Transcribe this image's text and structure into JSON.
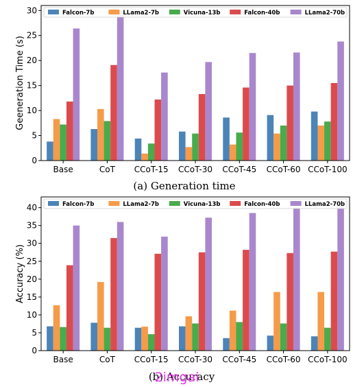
{
  "chart_data": [
    {
      "type": "bar",
      "caption": "(a) Generation time",
      "xlabel": "",
      "ylabel": "Geeneration Time (s)",
      "categories": [
        "Base",
        "CoT",
        "CCoT-15",
        "CCoT-30",
        "CCoT-45",
        "CCoT-60",
        "CCoT-100"
      ],
      "ylim": [
        0,
        31
      ],
      "yticks": [
        0,
        5,
        10,
        15,
        20,
        25,
        30
      ],
      "grid": false,
      "legend_position": "top",
      "series": [
        {
          "name": "Falcon-7b",
          "color": "#4c84b8",
          "values": [
            3.8,
            6.3,
            4.4,
            5.8,
            8.6,
            9.1,
            9.8
          ]
        },
        {
          "name": "LLama2-7b",
          "color": "#f59b49",
          "values": [
            8.3,
            10.3,
            1.4,
            2.7,
            3.2,
            5.4,
            7.0
          ]
        },
        {
          "name": "Vicuna-13b",
          "color": "#4aab4d",
          "values": [
            7.2,
            7.9,
            3.4,
            5.4,
            5.6,
            7.0,
            7.8
          ]
        },
        {
          "name": "Falcon-40b",
          "color": "#dc4b4c",
          "values": [
            11.8,
            19.1,
            12.2,
            13.3,
            14.6,
            15.0,
            15.5
          ]
        },
        {
          "name": "LLama2-70b",
          "color": "#a987cc",
          "values": [
            26.4,
            29.9,
            17.6,
            19.7,
            21.5,
            21.6,
            23.8
          ]
        }
      ]
    },
    {
      "type": "bar",
      "caption": "(b) Accuracy",
      "xlabel": "",
      "ylabel": "Accuracy (%)",
      "categories": [
        "Base",
        "CoT",
        "CCoT-15",
        "CCoT-30",
        "CCoT-45",
        "CCoT-60",
        "CCoT-100"
      ],
      "ylim": [
        0,
        43
      ],
      "yticks": [
        0,
        5,
        10,
        15,
        20,
        25,
        30,
        35,
        40
      ],
      "grid": false,
      "legend_position": "top",
      "series": [
        {
          "name": "Falcon-7b",
          "color": "#4c84b8",
          "values": [
            6.8,
            7.8,
            6.4,
            6.8,
            3.5,
            4.2,
            4.0
          ]
        },
        {
          "name": "LLama2-7b",
          "color": "#f59b49",
          "values": [
            12.7,
            19.2,
            6.7,
            9.6,
            11.2,
            16.4,
            16.4
          ]
        },
        {
          "name": "Vicuna-13b",
          "color": "#4aab4d",
          "values": [
            6.6,
            6.4,
            4.6,
            7.6,
            8.0,
            7.6,
            6.4
          ]
        },
        {
          "name": "Falcon-40b",
          "color": "#dc4b4c",
          "values": [
            23.9,
            31.5,
            27.1,
            27.5,
            28.2,
            27.3,
            27.7
          ]
        },
        {
          "name": "LLama2-70b",
          "color": "#a987cc",
          "values": [
            35.0,
            36.0,
            31.9,
            37.2,
            38.5,
            40.0,
            40.8
          ]
        }
      ]
    }
  ],
  "watermark": "2imgai"
}
